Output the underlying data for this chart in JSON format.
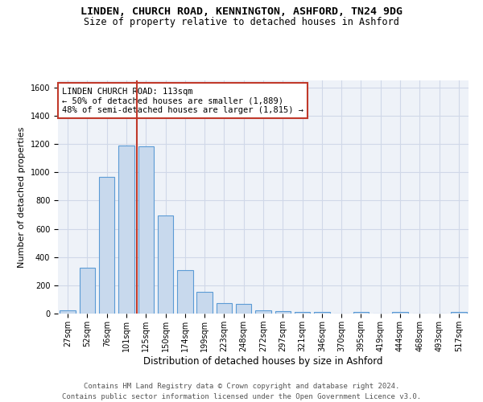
{
  "title1": "LINDEN, CHURCH ROAD, KENNINGTON, ASHFORD, TN24 9DG",
  "title2": "Size of property relative to detached houses in Ashford",
  "xlabel": "Distribution of detached houses by size in Ashford",
  "ylabel": "Number of detached properties",
  "categories": [
    "27sqm",
    "52sqm",
    "76sqm",
    "101sqm",
    "125sqm",
    "150sqm",
    "174sqm",
    "199sqm",
    "223sqm",
    "248sqm",
    "272sqm",
    "297sqm",
    "321sqm",
    "346sqm",
    "370sqm",
    "395sqm",
    "419sqm",
    "444sqm",
    "468sqm",
    "493sqm",
    "517sqm"
  ],
  "values": [
    25,
    325,
    965,
    1190,
    1185,
    695,
    305,
    155,
    75,
    70,
    25,
    18,
    12,
    10,
    0,
    10,
    0,
    10,
    0,
    0,
    12
  ],
  "bar_color": "#c8d9ed",
  "bar_edge_color": "#5b9bd5",
  "grid_color": "#d0d8e8",
  "background_color": "#eef2f8",
  "vline_x": 3.55,
  "vline_color": "#c0392b",
  "annotation_text": "LINDEN CHURCH ROAD: 113sqm\n← 50% of detached houses are smaller (1,889)\n48% of semi-detached houses are larger (1,815) →",
  "annotation_box_color": "white",
  "annotation_box_edge": "#c0392b",
  "ylim": [
    0,
    1650
  ],
  "yticks": [
    0,
    200,
    400,
    600,
    800,
    1000,
    1200,
    1400,
    1600
  ],
  "footer": "Contains HM Land Registry data © Crown copyright and database right 2024.\nContains public sector information licensed under the Open Government Licence v3.0.",
  "title1_fontsize": 9.5,
  "title2_fontsize": 8.5,
  "xlabel_fontsize": 8.5,
  "ylabel_fontsize": 8,
  "tick_fontsize": 7,
  "annotation_fontsize": 7.5,
  "footer_fontsize": 6.5
}
